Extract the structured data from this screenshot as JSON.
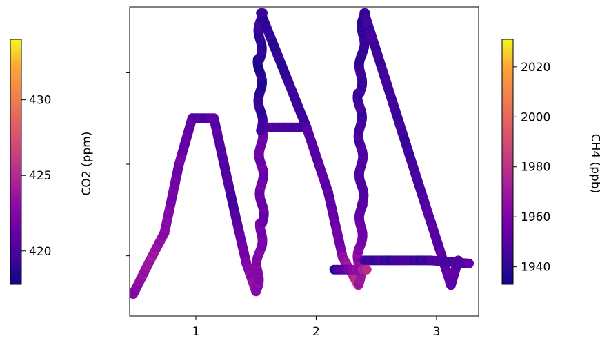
{
  "chart_data": {
    "type": "scatter",
    "title": "",
    "xlabel": "",
    "ylabel": "",
    "x_ticks": [
      "1",
      "2",
      "3"
    ],
    "xlim": [
      0.45,
      3.35
    ],
    "ylim": [
      0,
      1
    ],
    "colormap": "plasma",
    "colorbars": [
      {
        "name": "co2",
        "label": "CO2 (ppm)",
        "range": [
          417.8,
          434
        ],
        "ticks": [
          "420",
          "425",
          "430"
        ],
        "tick_values": [
          420,
          425,
          430
        ]
      },
      {
        "name": "ch4",
        "label": "CH4 (ppb)",
        "range": [
          1933,
          2031
        ],
        "ticks": [
          "1940",
          "1960",
          "1980",
          "2000",
          "2020"
        ],
        "tick_values": [
          1940,
          1960,
          1980,
          2000,
          2020
        ]
      }
    ],
    "left_axis_ticks": [
      0.195,
      0.491,
      0.787
    ],
    "marker_size": 14,
    "color_by": "co2",
    "path_segments": [
      {
        "from": [
          0.48,
          0.071
        ],
        "to": [
          0.62,
          0.18
        ],
        "c": [
          422.5,
          424
        ]
      },
      {
        "from": [
          0.62,
          0.18
        ],
        "to": [
          0.74,
          0.27
        ],
        "c": [
          424,
          423
        ]
      },
      {
        "from": [
          0.74,
          0.27
        ],
        "to": [
          0.86,
          0.49
        ],
        "c": [
          423,
          421.5
        ]
      },
      {
        "from": [
          0.86,
          0.49
        ],
        "to": [
          0.97,
          0.64
        ],
        "c": [
          421.5,
          421
        ]
      },
      {
        "from": [
          0.97,
          0.64
        ],
        "to": [
          1.15,
          0.64
        ],
        "c": [
          420.5,
          420.5
        ]
      },
      {
        "from": [
          1.15,
          0.64
        ],
        "to": [
          1.32,
          0.34
        ],
        "c": [
          421,
          420
        ]
      },
      {
        "from": [
          1.32,
          0.34
        ],
        "to": [
          1.42,
          0.17
        ],
        "c": [
          420,
          422
        ]
      },
      {
        "from": [
          1.42,
          0.17
        ],
        "to": [
          1.5,
          0.08
        ],
        "c": [
          422,
          423.5
        ]
      },
      {
        "from": [
          1.5,
          0.08
        ],
        "to": [
          1.55,
          0.3
        ],
        "c": [
          423,
          422
        ]
      },
      {
        "from": [
          1.55,
          0.3
        ],
        "to": [
          1.54,
          0.6
        ],
        "c": [
          421.5,
          421.5
        ]
      },
      {
        "from": [
          1.54,
          0.6
        ],
        "to": [
          1.53,
          0.83
        ],
        "c": [
          419.5,
          418.5
        ]
      },
      {
        "from": [
          1.53,
          0.83
        ],
        "to": [
          1.54,
          0.98
        ],
        "c": [
          419,
          419.5
        ]
      },
      {
        "from": [
          1.54,
          0.98
        ],
        "to": [
          1.92,
          0.61
        ],
        "c": [
          419,
          419.5
        ]
      },
      {
        "from": [
          1.92,
          0.61
        ],
        "to": [
          1.55,
          0.61
        ],
        "c": [
          420,
          420
        ]
      },
      {
        "from": [
          1.92,
          0.61
        ],
        "to": [
          2.1,
          0.4
        ],
        "c": [
          420.5,
          421
        ]
      },
      {
        "from": [
          2.1,
          0.4
        ],
        "to": [
          2.22,
          0.19
        ],
        "c": [
          421,
          422
        ]
      },
      {
        "from": [
          2.22,
          0.19
        ],
        "to": [
          2.35,
          0.1
        ],
        "c": [
          423,
          426
        ]
      },
      {
        "from": [
          2.35,
          0.1
        ],
        "to": [
          2.38,
          0.36
        ],
        "c": [
          424,
          421
        ]
      },
      {
        "from": [
          2.38,
          0.36
        ],
        "to": [
          2.36,
          0.72
        ],
        "c": [
          420.5,
          419.5
        ]
      },
      {
        "from": [
          2.36,
          0.72
        ],
        "to": [
          2.4,
          0.98
        ],
        "c": [
          419.5,
          419
        ]
      },
      {
        "from": [
          2.4,
          0.98
        ],
        "to": [
          2.8,
          0.49
        ],
        "c": [
          419.5,
          419.5
        ]
      },
      {
        "from": [
          2.8,
          0.49
        ],
        "to": [
          3.12,
          0.1
        ],
        "c": [
          420,
          421
        ]
      },
      {
        "from": [
          3.12,
          0.1
        ],
        "to": [
          3.18,
          0.18
        ],
        "c": [
          421,
          420.5
        ]
      },
      {
        "from": [
          2.4,
          0.18
        ],
        "to": [
          2.95,
          0.18
        ],
        "c": [
          419.5,
          419.5
        ]
      },
      {
        "from": [
          2.95,
          0.18
        ],
        "to": [
          3.27,
          0.17
        ],
        "c": [
          420,
          420.5
        ]
      },
      {
        "from": [
          2.15,
          0.15
        ],
        "to": [
          2.42,
          0.15
        ],
        "c": [
          418.8,
          425
        ]
      }
    ]
  }
}
